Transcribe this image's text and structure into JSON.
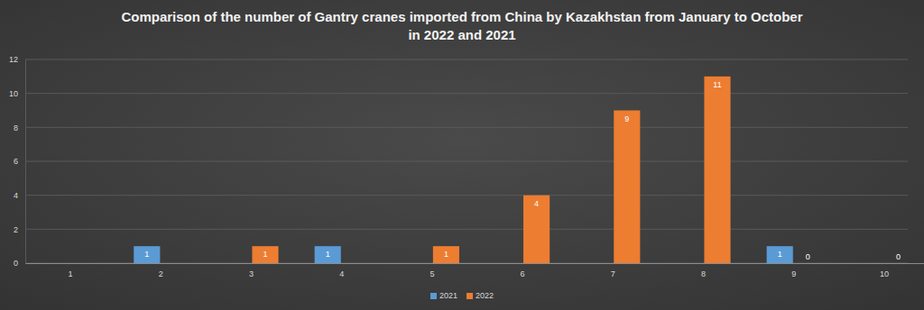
{
  "chart_data": {
    "type": "bar",
    "title": "Comparison of the number of Gantry cranes imported from China by Kazakhstan from January to October in 2022 and 2021",
    "categories": [
      "1",
      "2",
      "3",
      "4",
      "5",
      "6",
      "7",
      "8",
      "9",
      "10"
    ],
    "series": [
      {
        "name": "2021",
        "color": "#5b9bd5",
        "values": [
          null,
          1,
          null,
          1,
          null,
          null,
          null,
          null,
          1,
          null
        ]
      },
      {
        "name": "2022",
        "color": "#ed7d31",
        "values": [
          null,
          null,
          1,
          null,
          1,
          4,
          9,
          11,
          0,
          0
        ]
      }
    ],
    "ylim": [
      0,
      12
    ],
    "yticks": [
      0,
      2,
      4,
      6,
      8,
      10,
      12
    ],
    "grid": true,
    "legend": "bottom",
    "data_labels": true
  }
}
